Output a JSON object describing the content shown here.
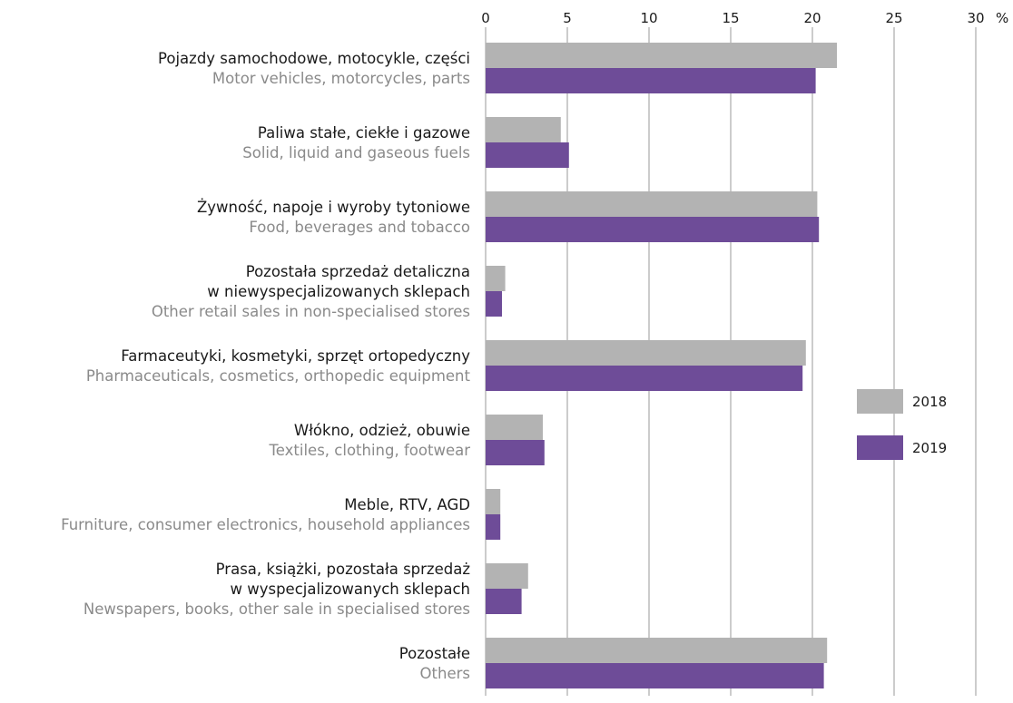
{
  "chart_data": {
    "type": "bar",
    "orientation": "horizontal",
    "title": "",
    "xlabel": "",
    "ylabel": "",
    "unit": "%",
    "xlim": [
      0,
      30
    ],
    "xticks": [
      "0",
      "5",
      "10",
      "15",
      "20",
      "25",
      "30"
    ],
    "grid": true,
    "legend_position": "right",
    "categories": [
      {
        "pl": [
          "Pojazdy samochodowe, motocykle, części"
        ],
        "en": "Motor vehicles, motorcycles, parts"
      },
      {
        "pl": [
          "Paliwa stałe, ciekłe i gazowe"
        ],
        "en": "Solid, liquid and gaseous fuels"
      },
      {
        "pl": [
          "Żywność, napoje i wyroby tytoniowe"
        ],
        "en": "Food, beverages and tobacco"
      },
      {
        "pl": [
          "Pozostała sprzedaż detaliczna",
          "w niewyspecjalizowanych sklepach"
        ],
        "en": "Other retail sales in non-specialised stores"
      },
      {
        "pl": [
          "Farmaceutyki, kosmetyki, sprzęt ortopedyczny"
        ],
        "en": "Pharmaceuticals, cosmetics, orthopedic equipment"
      },
      {
        "pl": [
          "Włókno, odzież, obuwie"
        ],
        "en": "Textiles, clothing, footwear"
      },
      {
        "pl": [
          "Meble, RTV, AGD"
        ],
        "en": "Furniture, consumer electronics, household appliances"
      },
      {
        "pl": [
          "Prasa, książki, pozostała sprzedaż",
          "w wyspecjalizowanych sklepach"
        ],
        "en": "Newspapers, books, other sale in specialised stores"
      },
      {
        "pl": [
          "Pozostałe"
        ],
        "en": "Others"
      }
    ],
    "series": [
      {
        "name": "2018",
        "color": "#b3b3b3",
        "values": [
          21.5,
          4.6,
          20.3,
          1.2,
          19.6,
          3.5,
          0.9,
          2.6,
          20.9
        ]
      },
      {
        "name": "2019",
        "color": "#6e4c98",
        "values": [
          20.2,
          5.1,
          20.4,
          1.0,
          19.4,
          3.6,
          0.9,
          2.2,
          20.7
        ]
      }
    ]
  }
}
